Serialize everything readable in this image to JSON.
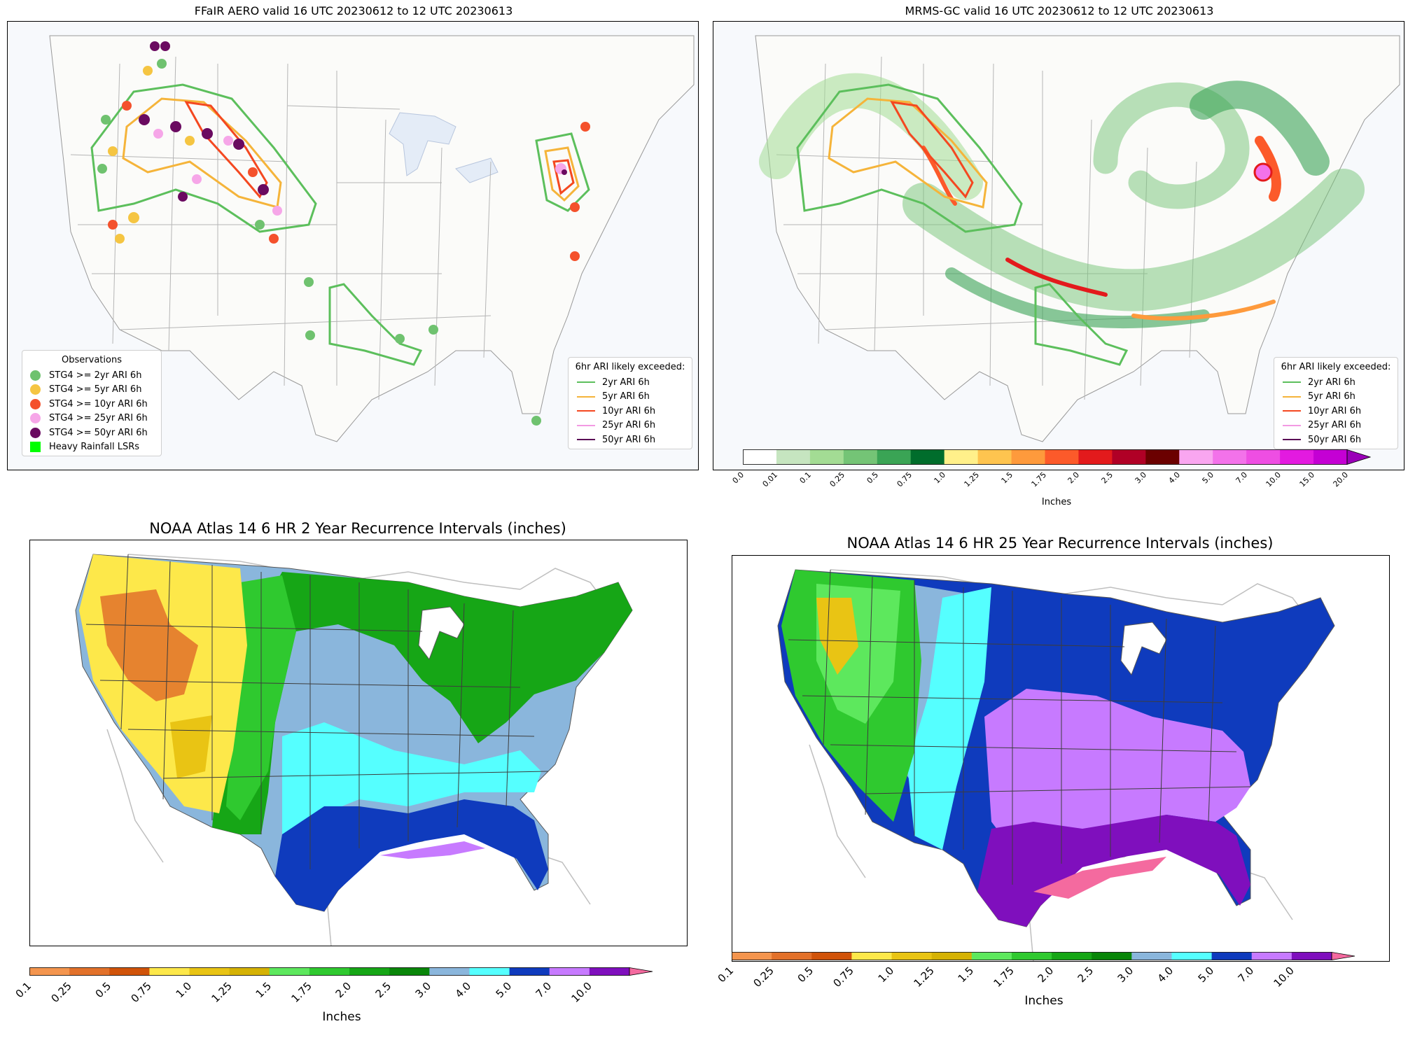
{
  "panels": {
    "ffair": {
      "title": "FFaIR AERO valid 16 UTC 20230612 to 12 UTC 20230613",
      "obs_legend": {
        "title": "Observations",
        "items": [
          {
            "label": "STG4 >= 2yr ARI 6h",
            "color": "#6fc26f",
            "shape": "dot"
          },
          {
            "label": "STG4 >= 5yr ARI 6h",
            "color": "#f5c542",
            "shape": "dot"
          },
          {
            "label": "STG4 >= 10yr ARI 6h",
            "color": "#f4512c",
            "shape": "dot"
          },
          {
            "label": "STG4 >= 25yr ARI 6h",
            "color": "#f6a6e8",
            "shape": "dot"
          },
          {
            "label": "STG4 >= 50yr ARI 6h",
            "color": "#6a0a60",
            "shape": "dot"
          },
          {
            "label": "Heavy Rainfall LSRs",
            "color": "#00ff00",
            "shape": "square"
          }
        ]
      }
    },
    "mrms": {
      "title": "MRMS-GC valid 16 UTC 20230612 to 12 UTC 20230613"
    },
    "atlas2": {
      "title": "NOAA Atlas 14 6 HR 2 Year Recurrence Intervals (inches)"
    },
    "atlas25": {
      "title": "NOAA Atlas 14 6 HR 25 Year Recurrence Intervals (inches)"
    }
  },
  "ari_legend": {
    "title": "6hr ARI likely exceeded:",
    "items": [
      {
        "label": "2yr ARI 6h",
        "color": "#5cbf5c"
      },
      {
        "label": "5yr ARI 6h",
        "color": "#f5b43a"
      },
      {
        "label": "10yr ARI 6h",
        "color": "#f44820"
      },
      {
        "label": "25yr ARI 6h",
        "color": "#f39ae3"
      },
      {
        "label": "50yr ARI 6h",
        "color": "#5a0a55"
      }
    ]
  },
  "colorbars": {
    "mrms": {
      "label": "Inches",
      "ticks": [
        "0.0",
        "0.01",
        "0.1",
        "0.25",
        "0.5",
        "0.75",
        "1.0",
        "1.25",
        "1.5",
        "1.75",
        "2.0",
        "2.5",
        "3.0",
        "4.0",
        "5.0",
        "7.0",
        "10.0",
        "15.0",
        "20.0"
      ],
      "colors": [
        "#ffffff",
        "#c6e5c0",
        "#a3dc94",
        "#74c476",
        "#3aa455",
        "#006d2c",
        "#fff08a",
        "#fec44f",
        "#fe9a3c",
        "#fc5a2a",
        "#e31a1c",
        "#b00026",
        "#6b0000",
        "#f9a6f0",
        "#f372ea",
        "#ee4ee3",
        "#e31ae0",
        "#c400d4",
        "#9a00b8"
      ]
    },
    "atlas": {
      "label": "Inches",
      "ticks": [
        "0.1",
        "0.25",
        "0.5",
        "0.75",
        "1.0",
        "1.25",
        "1.5",
        "1.75",
        "2.0",
        "2.5",
        "3.0",
        "4.0",
        "5.0",
        "7.0",
        "10.0"
      ],
      "colors": [
        "#f4954e",
        "#e2712a",
        "#d05309",
        "#fde84a",
        "#e9c414",
        "#d5b204",
        "#5de85d",
        "#2fc92f",
        "#16a616",
        "#098609",
        "#8ab6dc",
        "#55ffff",
        "#0f3bbd",
        "#c77aff",
        "#7f0fbd",
        "#f46a9f"
      ]
    }
  }
}
